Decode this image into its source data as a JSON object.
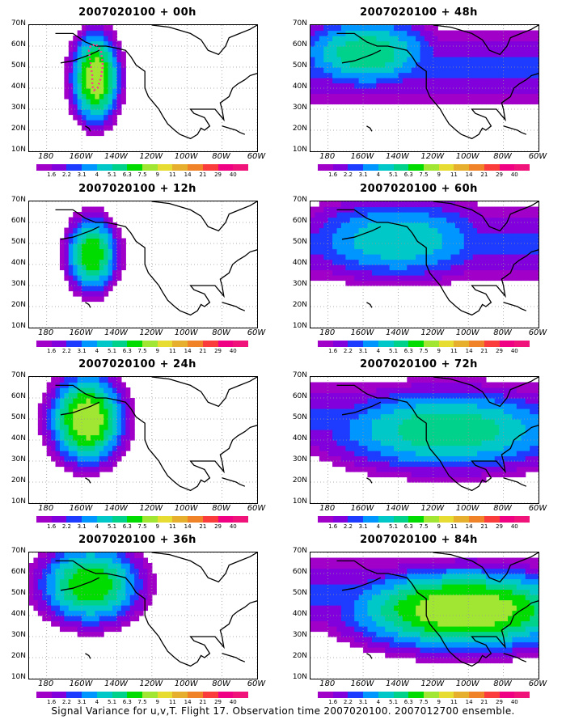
{
  "chart_data": [
    {
      "type": "heatmap",
      "title": "2007020100 + 00h",
      "region": "pacific_north",
      "center": [
        -152,
        45
      ],
      "spread": [
        9,
        14
      ],
      "peak": 11,
      "contour_marker": true
    },
    {
      "type": "heatmap",
      "title": "2007020100 + 48h",
      "region": "pacific_wide",
      "center": [
        -158,
        57
      ],
      "spread": [
        28,
        12
      ],
      "peak": 7.5
    },
    {
      "type": "heatmap",
      "title": "2007020100 + 12h",
      "region": "pacific_north",
      "center": [
        -154,
        45
      ],
      "spread": [
        10,
        12
      ],
      "peak": 9
    },
    {
      "type": "heatmap",
      "title": "2007020100 + 60h",
      "region": "pacific_wide",
      "center": [
        -140,
        52
      ],
      "spread": [
        40,
        14
      ],
      "peak": 6.3
    },
    {
      "type": "heatmap",
      "title": "2007020100 + 24h",
      "region": "pacific_north",
      "center": [
        -157,
        50
      ],
      "spread": [
        14,
        14
      ],
      "peak": 11
    },
    {
      "type": "heatmap",
      "title": "2007020100 + 72h",
      "region": "pacific_wide",
      "center": [
        -112,
        45
      ],
      "spread": [
        50,
        14
      ],
      "peak": 7.5
    },
    {
      "type": "heatmap",
      "title": "2007020100 + 36h",
      "region": "pacific_north",
      "center": [
        -155,
        55
      ],
      "spread": [
        20,
        13
      ],
      "peak": 9
    },
    {
      "type": "heatmap",
      "title": "2007020100 + 84h",
      "region": "pacific_wide",
      "center": [
        -102,
        43
      ],
      "spread": [
        45,
        13
      ],
      "peak": 11
    }
  ],
  "axes": {
    "x_ticks": [
      "180",
      "160W",
      "140W",
      "120W",
      "100W",
      "80W",
      "60W"
    ],
    "x_values": [
      180,
      200,
      220,
      240,
      260,
      280,
      300
    ],
    "y_ticks": [
      "70N",
      "60N",
      "50N",
      "40N",
      "30N",
      "20N",
      "10N"
    ],
    "y_values": [
      70,
      60,
      50,
      40,
      30,
      20,
      10
    ],
    "xlim": [
      170,
      300
    ],
    "ylim": [
      10,
      70
    ],
    "grid": true
  },
  "colorbar": {
    "labels": [
      "1.6",
      "2.2",
      "3.1",
      "4",
      "5.1",
      "6.3",
      "7.5",
      "9",
      "11",
      "14",
      "21",
      "29",
      "40"
    ],
    "colors": [
      "#a000c8",
      "#8200dc",
      "#1e3cff",
      "#0096ff",
      "#00c8c8",
      "#00d28c",
      "#00dc00",
      "#a0e632",
      "#e6dc32",
      "#e6af2d",
      "#f08228",
      "#fa3c3c",
      "#f00082"
    ]
  },
  "footer": "Signal Variance for u,v,T. Flight 17. Observation time 2007020100. 2007012700 ensemble."
}
